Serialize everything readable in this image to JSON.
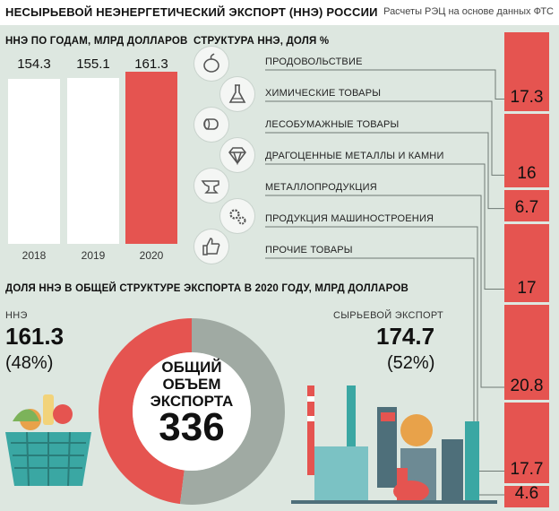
{
  "header": {
    "title": "НЕСЫРЬЕВОЙ НЕЭНЕРГЕТИЧЕСКИЙ ЭКСПОРТ (ННЭ) РОССИИ",
    "source": "Расчеты РЭЦ на основе данных ФТС"
  },
  "colors": {
    "background": "#dde7e0",
    "red": "#e55450",
    "white_bar": "#ffffff",
    "grey_segment": "#a0aaa3"
  },
  "chart_data": [
    {
      "type": "bar",
      "title": "ННЭ ПО ГОДАМ, МЛРД ДОЛЛАРОВ",
      "categories": [
        "2018",
        "2019",
        "2020"
      ],
      "values": [
        154.3,
        155.1,
        161.3
      ],
      "value_labels": [
        "154.3",
        "155.1",
        "161.3"
      ],
      "highlight_index": 2
    },
    {
      "type": "bar",
      "title": "СТРУКТУРА ННЭ, ДОЛЯ %",
      "orientation": "stacked-vertical",
      "categories": [
        "ПРОДОВОЛЬСТВИЕ",
        "ХИМИЧЕСКИЕ ТОВАРЫ",
        "ЛЕСОБУМАЖНЫЕ ТОВАРЫ",
        "ДРАГОЦЕННЫЕ МЕТАЛЛЫ И КАМНИ",
        "МЕТАЛЛОПРОДУКЦИЯ",
        "ПРОДУКЦИЯ МАШИНОСТРОЕНИЯ",
        "ПРОЧИЕ ТОВАРЫ"
      ],
      "icons": [
        "food-icon",
        "chemistry-flask-icon",
        "paper-roll-icon",
        "diamond-icon",
        "anvil-icon",
        "gears-icon",
        "thumbs-up-icon"
      ],
      "values": [
        17.3,
        16,
        6.7,
        17,
        20.8,
        17.7,
        4.6
      ],
      "value_labels": [
        "17.3",
        "16",
        "6.7",
        "17",
        "20.8",
        "17.7",
        "4.6"
      ]
    },
    {
      "type": "pie",
      "title": "ДОЛЯ ННЭ В ОБЩЕЙ СТРУКТУРЕ ЭКСПОРТА В 2020 ГОДУ, МЛРД ДОЛЛАРОВ",
      "center_label": [
        "ОБЩИЙ",
        "ОБЪЕМ",
        "ЭКСПОРТА"
      ],
      "center_value": "336",
      "slices": [
        {
          "label": "ННЭ",
          "value": 161.3,
          "value_label": "161.3",
          "share_label": "(48%)"
        },
        {
          "label": "СЫРЬЕВОЙ ЭКСПОРТ",
          "value": 174.7,
          "value_label": "174.7",
          "share_label": "(52%)"
        }
      ]
    }
  ]
}
